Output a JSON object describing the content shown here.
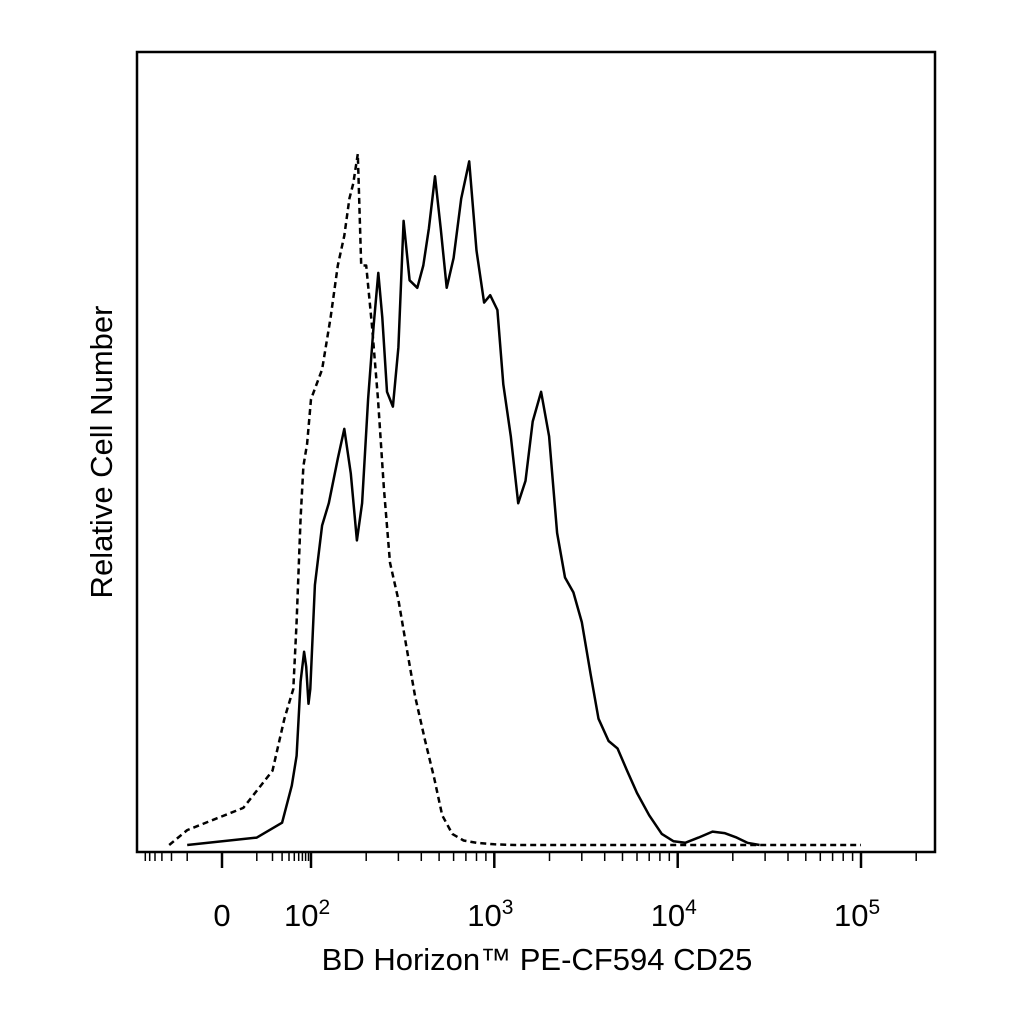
{
  "chart_data": {
    "type": "line",
    "title": "",
    "xlabel": "BD Horizon™ PE-CF594 CD25",
    "ylabel": "Relative Cell Number",
    "x_scale": "biexponential",
    "xlim": [
      -60,
      250000
    ],
    "ylim": [
      0,
      100
    ],
    "grid": false,
    "legend": "none",
    "x_ticks": [
      {
        "value": 0,
        "label": "0",
        "exp": ""
      },
      {
        "value": 100,
        "label": "10",
        "exp": "2"
      },
      {
        "value": 1000,
        "label": "10",
        "exp": "3"
      },
      {
        "value": 10000,
        "label": "10",
        "exp": "4"
      },
      {
        "value": 100000,
        "label": "10",
        "exp": "5"
      }
    ],
    "series": [
      {
        "style": "solid",
        "color": "#000000",
        "points": [
          [
            -10,
            0
          ],
          [
            10,
            1
          ],
          [
            30,
            3
          ],
          [
            45,
            8
          ],
          [
            55,
            12
          ],
          [
            65,
            22
          ],
          [
            75,
            26
          ],
          [
            82,
            24
          ],
          [
            90,
            19
          ],
          [
            97,
            21
          ],
          [
            105,
            35
          ],
          [
            115,
            43
          ],
          [
            125,
            46
          ],
          [
            140,
            52
          ],
          [
            152,
            56
          ],
          [
            165,
            50
          ],
          [
            178,
            41
          ],
          [
            190,
            46
          ],
          [
            205,
            60
          ],
          [
            220,
            70
          ],
          [
            233,
            77
          ],
          [
            245,
            71
          ],
          [
            260,
            61
          ],
          [
            280,
            59
          ],
          [
            300,
            67
          ],
          [
            320,
            84
          ],
          [
            345,
            76
          ],
          [
            380,
            75
          ],
          [
            410,
            78
          ],
          [
            440,
            83
          ],
          [
            475,
            90
          ],
          [
            510,
            83
          ],
          [
            550,
            75
          ],
          [
            600,
            79
          ],
          [
            660,
            87
          ],
          [
            730,
            92
          ],
          [
            800,
            80
          ],
          [
            880,
            73
          ],
          [
            950,
            74
          ],
          [
            1040,
            72
          ],
          [
            1120,
            62
          ],
          [
            1230,
            55
          ],
          [
            1350,
            46
          ],
          [
            1480,
            49
          ],
          [
            1620,
            57
          ],
          [
            1800,
            61
          ],
          [
            1990,
            55
          ],
          [
            2200,
            42
          ],
          [
            2430,
            36
          ],
          [
            2700,
            34
          ],
          [
            3000,
            30
          ],
          [
            3350,
            23
          ],
          [
            3700,
            17
          ],
          [
            4200,
            14
          ],
          [
            4700,
            13
          ],
          [
            5300,
            10
          ],
          [
            6000,
            7
          ],
          [
            7000,
            4
          ],
          [
            8200,
            1.5
          ],
          [
            9500,
            0.5
          ],
          [
            11000,
            0.3
          ],
          [
            13000,
            1
          ],
          [
            15500,
            1.8
          ],
          [
            18000,
            1.6
          ],
          [
            21000,
            1.0
          ],
          [
            24000,
            0.3
          ],
          [
            28000,
            0
          ]
        ]
      },
      {
        "style": "dashed",
        "color": "#000000",
        "points": [
          [
            -22,
            0
          ],
          [
            -10,
            2
          ],
          [
            5,
            5
          ],
          [
            20,
            10
          ],
          [
            33,
            17
          ],
          [
            48,
            21
          ],
          [
            55,
            30
          ],
          [
            65,
            44
          ],
          [
            73,
            51
          ],
          [
            85,
            54
          ],
          [
            100,
            60
          ],
          [
            115,
            64
          ],
          [
            128,
            71
          ],
          [
            140,
            78
          ],
          [
            152,
            82
          ],
          [
            162,
            87
          ],
          [
            170,
            89
          ],
          [
            180,
            93
          ],
          [
            188,
            78
          ],
          [
            200,
            78
          ],
          [
            215,
            70
          ],
          [
            232,
            60
          ],
          [
            250,
            48
          ],
          [
            270,
            38
          ],
          [
            300,
            33
          ],
          [
            330,
            27
          ],
          [
            370,
            20
          ],
          [
            420,
            14
          ],
          [
            470,
            9
          ],
          [
            520,
            4
          ],
          [
            590,
            1.5
          ],
          [
            680,
            0.6
          ],
          [
            800,
            0.3
          ],
          [
            1000,
            0.1
          ],
          [
            1300,
            0
          ],
          [
            100000,
            0
          ]
        ]
      }
    ]
  }
}
